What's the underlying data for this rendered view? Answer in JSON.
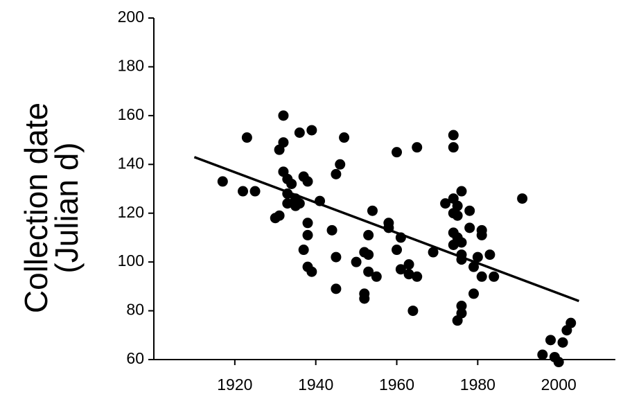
{
  "chart_data": {
    "type": "scatter",
    "ylabel_lines": [
      "Collection date",
      "(Julian d)"
    ],
    "xlim": [
      1900,
      2014
    ],
    "xticks": [
      1920,
      1940,
      1960,
      1980,
      2000
    ],
    "ylim": [
      60,
      200
    ],
    "yticks": [
      60,
      80,
      100,
      120,
      140,
      160,
      180,
      200
    ],
    "color": "#000000",
    "x": [
      1917,
      1922,
      1923,
      1925,
      1930,
      1931,
      1931,
      1932,
      1932,
      1932,
      1933,
      1933,
      1933,
      1934,
      1935,
      1935,
      1936,
      1936,
      1937,
      1937,
      1938,
      1938,
      1938,
      1938,
      1939,
      1939,
      1941,
      1944,
      1945,
      1945,
      1945,
      1946,
      1947,
      1950,
      1952,
      1952,
      1952,
      1953,
      1953,
      1953,
      1954,
      1955,
      1958,
      1958,
      1960,
      1960,
      1961,
      1961,
      1963,
      1963,
      1964,
      1965,
      1965,
      1969,
      1972,
      1974,
      1974,
      1974,
      1974,
      1974,
      1974,
      1975,
      1975,
      1975,
      1975,
      1976,
      1976,
      1976,
      1976,
      1976,
      1976,
      1978,
      1978,
      1979,
      1979,
      1980,
      1981,
      1981,
      1981,
      1983,
      1984,
      1991,
      1996,
      1998,
      1999,
      2000,
      2001,
      2002,
      2003
    ],
    "y": [
      133,
      129,
      151,
      129,
      118,
      119,
      146,
      149,
      160,
      137,
      134,
      124,
      128,
      132,
      126,
      123,
      153,
      124,
      135,
      105,
      133,
      116,
      111,
      98,
      154,
      96,
      125,
      113,
      136,
      102,
      89,
      140,
      151,
      100,
      87,
      85,
      104,
      111,
      103,
      96,
      121,
      94,
      116,
      114,
      145,
      105,
      110,
      97,
      99,
      95,
      80,
      147,
      94,
      104,
      124,
      152,
      147,
      126,
      120,
      112,
      107,
      123,
      119,
      110,
      76,
      103,
      101,
      129,
      108,
      82,
      79,
      114,
      121,
      98,
      87,
      102,
      113,
      111,
      94,
      103,
      94,
      126,
      62,
      68,
      61,
      59,
      67,
      72,
      75
    ],
    "trend": {
      "x": [
        1910,
        2005
      ],
      "y": [
        143,
        84
      ]
    }
  }
}
